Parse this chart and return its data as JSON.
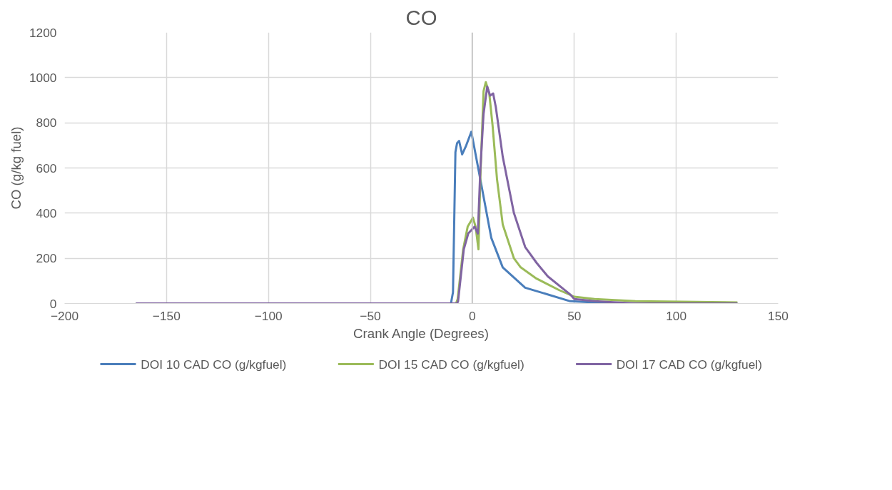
{
  "chart_data": {
    "type": "line",
    "title": "CO",
    "xlabel": "Crank Angle (Degrees)",
    "ylabel": "CO (g/kg fuel)",
    "xlim": [
      -200,
      150
    ],
    "xticks": [
      -200,
      -150,
      -100,
      -50,
      0,
      50,
      100,
      150
    ],
    "ylim": [
      0,
      1200
    ],
    "yticks": [
      0,
      200,
      400,
      600,
      800,
      1000,
      1200
    ],
    "grid": true,
    "legend": "bottom",
    "ref_lines": [
      {
        "axis": "x",
        "value": 0,
        "color": "#bfbfbf"
      }
    ],
    "series": [
      {
        "name": "DOI 10 CAD CO (g/kgfuel)",
        "color": "#4a7ebb",
        "x": [
          -165,
          -10.5,
          -9.5,
          -8.3,
          -7.5,
          -6.5,
          -5,
          -3,
          -0.5,
          3.9,
          9.3,
          14.9,
          25.9,
          48,
          70,
          130
        ],
        "values": [
          0,
          0,
          50,
          670,
          710,
          720,
          660,
          700,
          760,
          550,
          290,
          160,
          70,
          10,
          0,
          0
        ]
      },
      {
        "name": "DOI 15 CAD CO (g/kgfuel)",
        "color": "#9bbb59",
        "x": [
          -165,
          -8,
          -7.2,
          -4.5,
          -2.3,
          0.3,
          1.6,
          3,
          3.9,
          5.5,
          6.6,
          8.3,
          9.9,
          12.1,
          14.9,
          20.4,
          23.7,
          31.5,
          42.4,
          50,
          60,
          80,
          130
        ],
        "values": [
          0,
          0,
          20,
          240,
          340,
          380,
          340,
          240,
          550,
          940,
          980,
          930,
          790,
          550,
          350,
          200,
          160,
          110,
          60,
          30,
          20,
          10,
          5
        ]
      },
      {
        "name": "DOI 17 CAD CO (g/kgfuel)",
        "color": "#8064a2",
        "x": [
          -165,
          -7.5,
          -7,
          -4.2,
          -2,
          1.1,
          2.7,
          3.9,
          5.5,
          7.3,
          8.7,
          10.2,
          11.5,
          14.9,
          20.4,
          25.9,
          31.5,
          37,
          48,
          50,
          60,
          80,
          130
        ],
        "values": [
          0,
          0,
          10,
          240,
          310,
          340,
          310,
          590,
          840,
          960,
          920,
          930,
          870,
          650,
          400,
          250,
          180,
          120,
          40,
          20,
          10,
          0,
          0
        ]
      }
    ]
  }
}
